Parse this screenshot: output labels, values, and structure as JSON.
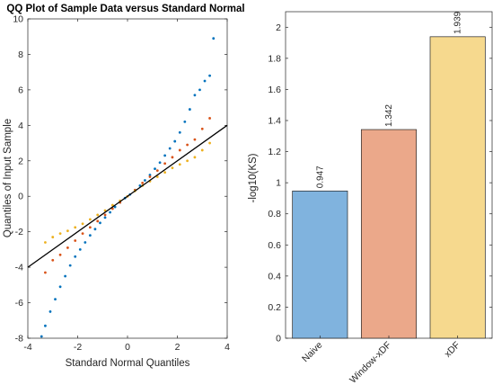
{
  "chart_data": [
    {
      "type": "scatter",
      "title": "QQ Plot of Sample Data versus Standard Normal",
      "xlabel": "Standard Normal Quantiles",
      "ylabel": "Quantiles of Input Sample",
      "xlim": [
        -4,
        4
      ],
      "ylim": [
        -8,
        10
      ],
      "xticks": [
        "-4",
        "-2",
        "0",
        "2",
        "4"
      ],
      "yticks": [
        "-8",
        "-6",
        "-4",
        "-2",
        "0",
        "2",
        "4",
        "6",
        "8",
        "10"
      ],
      "grid": false,
      "reference_line": {
        "x": [
          -4,
          4
        ],
        "y": [
          -4,
          4
        ],
        "color": "#000000"
      },
      "series": [
        {
          "color": "#0072BD",
          "x": [
            -3.45,
            -3.3,
            -3.1,
            -2.9,
            -2.7,
            -2.5,
            -2.3,
            -2.1,
            -1.9,
            -1.7,
            -1.5,
            -1.3,
            -1.1,
            -0.9,
            -0.7,
            -0.5,
            -0.3,
            -0.1,
            0.1,
            0.3,
            0.5,
            0.7,
            0.9,
            1.1,
            1.3,
            1.5,
            1.7,
            1.9,
            2.1,
            2.3,
            2.5,
            2.7,
            2.9,
            3.1,
            3.3,
            3.45
          ],
          "y": [
            -7.9,
            -7.3,
            -6.5,
            -5.8,
            -5.1,
            -4.5,
            -3.9,
            -3.4,
            -3.0,
            -2.6,
            -2.2,
            -1.85,
            -1.5,
            -1.2,
            -0.9,
            -0.6,
            -0.35,
            -0.1,
            0.1,
            0.35,
            0.6,
            0.9,
            1.2,
            1.55,
            1.9,
            2.3,
            2.7,
            3.1,
            3.6,
            4.2,
            4.9,
            5.7,
            6.0,
            6.5,
            6.8,
            8.9
          ]
        },
        {
          "color": "#D95319",
          "x": [
            -3.3,
            -3.0,
            -2.7,
            -2.4,
            -2.1,
            -1.8,
            -1.5,
            -1.2,
            -0.9,
            -0.6,
            -0.3,
            0.0,
            0.3,
            0.6,
            0.9,
            1.2,
            1.5,
            1.8,
            2.1,
            2.4,
            2.7,
            3.0,
            3.3
          ],
          "y": [
            -4.3,
            -3.6,
            -3.3,
            -2.9,
            -2.5,
            -2.1,
            -1.75,
            -1.4,
            -1.05,
            -0.7,
            -0.35,
            0.0,
            0.35,
            0.75,
            1.1,
            1.45,
            1.85,
            2.2,
            2.6,
            2.9,
            3.2,
            3.8,
            4.4
          ]
        },
        {
          "color": "#EDB120",
          "x": [
            -3.3,
            -3.0,
            -2.7,
            -2.4,
            -2.1,
            -1.8,
            -1.5,
            -1.2,
            -0.9,
            -0.6,
            -0.3,
            0.0,
            0.3,
            0.6,
            0.9,
            1.2,
            1.5,
            1.8,
            2.1,
            2.4,
            2.7,
            3.0,
            3.3
          ],
          "y": [
            -2.6,
            -2.3,
            -2.1,
            -1.95,
            -1.75,
            -1.55,
            -1.3,
            -1.05,
            -0.8,
            -0.5,
            -0.25,
            0.0,
            0.3,
            0.6,
            0.85,
            1.1,
            1.35,
            1.6,
            1.8,
            2.0,
            2.2,
            2.6,
            3.0
          ]
        }
      ]
    },
    {
      "type": "bar",
      "title": "",
      "xlabel": "",
      "ylabel": "-log10(KS)",
      "ylim": [
        0,
        2.1
      ],
      "yticks": [
        "0",
        "0.2",
        "0.4",
        "0.6",
        "0.8",
        "1",
        "1.2",
        "1.4",
        "1.6",
        "1.8",
        "2"
      ],
      "categories": [
        "Naive",
        "Window-xDF",
        "xDF"
      ],
      "values": [
        0.947,
        1.342,
        1.939
      ],
      "data_labels": [
        "0.947",
        "1.342",
        "1.939"
      ],
      "colors": [
        "#80B3DE",
        "#EBA88A",
        "#F6D98E"
      ],
      "grid": false
    }
  ]
}
